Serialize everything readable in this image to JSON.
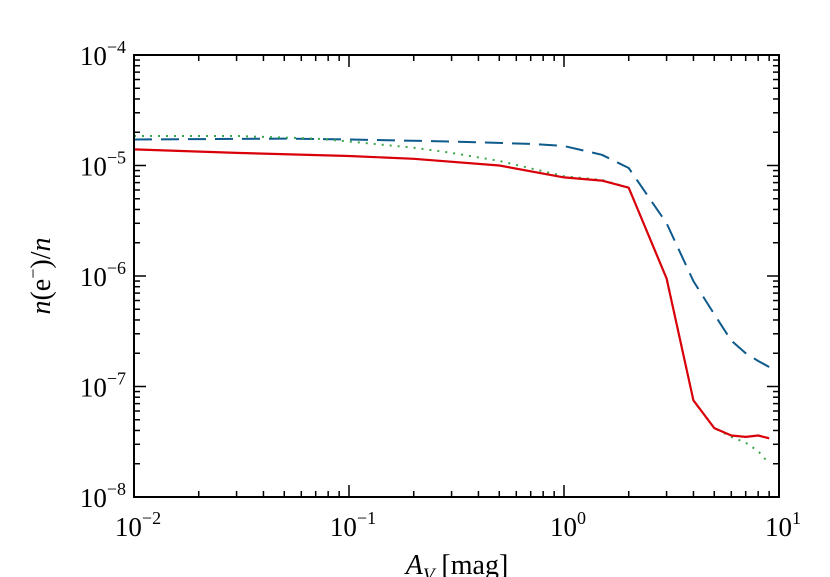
{
  "chart_data": {
    "type": "line",
    "xlabel": "A_V [mag]",
    "ylabel": "n(e⁻)/n",
    "x_scale": "log",
    "y_scale": "log",
    "xlim": [
      0.01,
      10
    ],
    "ylim": [
      1e-08,
      0.0001
    ],
    "grid": false,
    "legend": "none",
    "x_ticks": [
      {
        "value": 0.01,
        "base": "10",
        "exp": "−2"
      },
      {
        "value": 0.1,
        "base": "10",
        "exp": "−1"
      },
      {
        "value": 1,
        "base": "10",
        "exp": "0"
      },
      {
        "value": 10,
        "base": "10",
        "exp": "1"
      }
    ],
    "y_ticks": [
      {
        "value": 1e-08,
        "base": "10",
        "exp": "−8"
      },
      {
        "value": 1e-07,
        "base": "10",
        "exp": "−7"
      },
      {
        "value": 1e-06,
        "base": "10",
        "exp": "−6"
      },
      {
        "value": 1e-05,
        "base": "10",
        "exp": "−5"
      },
      {
        "value": 0.0001,
        "base": "10",
        "exp": "−4"
      }
    ],
    "series": [
      {
        "style": "solid",
        "color": "#d9000a",
        "points": [
          [
            0.01,
            1.4e-05
          ],
          [
            0.03,
            1.3e-05
          ],
          [
            0.1,
            1.22e-05
          ],
          [
            0.2,
            1.15e-05
          ],
          [
            0.5,
            1e-05
          ],
          [
            1.0,
            7.8e-06
          ],
          [
            1.5,
            7.3e-06
          ],
          [
            2.0,
            6.3e-06
          ],
          [
            3.0,
            9.5e-07
          ],
          [
            4.0,
            7.5e-08
          ],
          [
            5.0,
            4.2e-08
          ],
          [
            6.0,
            3.6e-08
          ],
          [
            7.0,
            3.5e-08
          ],
          [
            8.0,
            3.6e-08
          ],
          [
            9.0,
            3.4e-08
          ]
        ]
      },
      {
        "style": "dotted",
        "color": "#3aa84a",
        "points": [
          [
            0.01,
            1.85e-05
          ],
          [
            0.03,
            1.85e-05
          ],
          [
            0.07,
            1.75e-05
          ],
          [
            0.1,
            1.65e-05
          ],
          [
            0.2,
            1.45e-05
          ],
          [
            0.3,
            1.3e-05
          ],
          [
            0.5,
            1.1e-05
          ],
          [
            1.0,
            8e-06
          ],
          [
            1.5,
            7.4e-06
          ],
          [
            2.0,
            6.3e-06
          ],
          [
            3.0,
            9.5e-07
          ],
          [
            4.0,
            7.5e-08
          ],
          [
            5.0,
            4.2e-08
          ],
          [
            6.0,
            3.5e-08
          ],
          [
            7.0,
            3.1e-08
          ],
          [
            8.0,
            2.6e-08
          ],
          [
            9.0,
            2e-08
          ]
        ]
      },
      {
        "style": "dashed",
        "color": "#0d5a8c",
        "points": [
          [
            0.01,
            1.72e-05
          ],
          [
            0.05,
            1.75e-05
          ],
          [
            0.1,
            1.72e-05
          ],
          [
            0.3,
            1.65e-05
          ],
          [
            0.7,
            1.57e-05
          ],
          [
            1.0,
            1.5e-05
          ],
          [
            1.5,
            1.25e-05
          ],
          [
            2.0,
            9.5e-06
          ],
          [
            3.0,
            3e-06
          ],
          [
            4.0,
            9e-07
          ],
          [
            5.0,
            4.5e-07
          ],
          [
            6.0,
            2.6e-07
          ],
          [
            7.0,
            2e-07
          ],
          [
            8.0,
            1.7e-07
          ],
          [
            9.0,
            1.5e-07
          ]
        ]
      }
    ]
  }
}
